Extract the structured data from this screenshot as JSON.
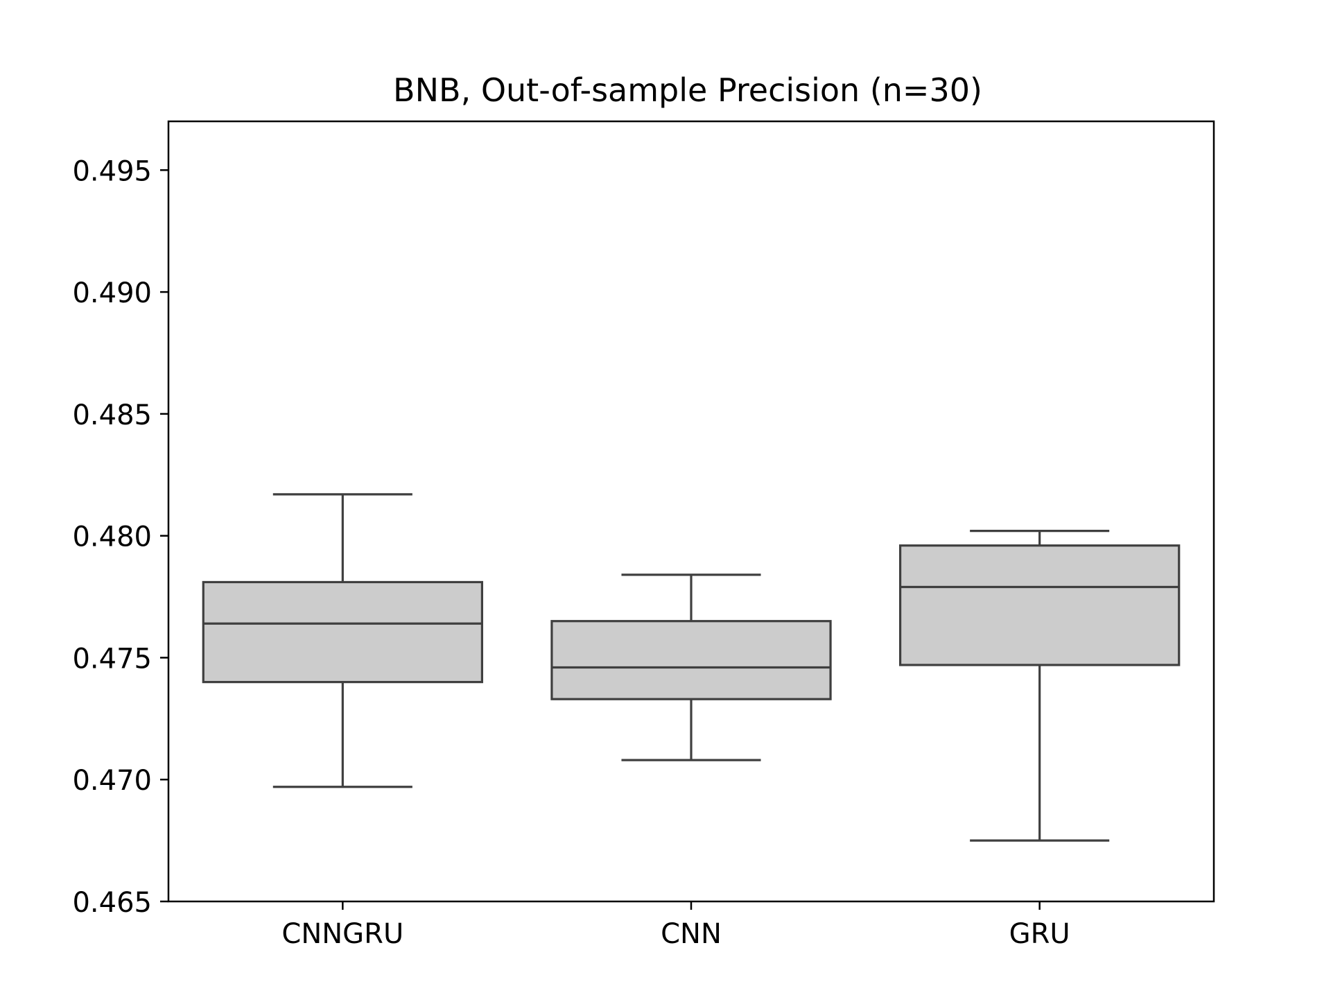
{
  "chart_data": {
    "type": "box",
    "title": "BNB, Out-of-sample Precision (n=30)",
    "xlabel": "",
    "ylabel": "",
    "categories": [
      "CNNGRU",
      "CNN",
      "GRU"
    ],
    "ylim": [
      0.465,
      0.497
    ],
    "yticks": [
      0.465,
      0.47,
      0.475,
      0.48,
      0.485,
      0.49,
      0.495
    ],
    "ytick_labels": [
      "0.465",
      "0.470",
      "0.475",
      "0.480",
      "0.485",
      "0.490",
      "0.495"
    ],
    "grid": false,
    "box_fill": "#cccccc",
    "line_color": "#3f3f3f",
    "boxes": [
      {
        "name": "CNNGRU",
        "whisker_low": 0.4697,
        "q1": 0.474,
        "median": 0.4764,
        "q3": 0.4781,
        "whisker_high": 0.4817
      },
      {
        "name": "CNN",
        "whisker_low": 0.4708,
        "q1": 0.4733,
        "median": 0.4746,
        "q3": 0.4765,
        "whisker_high": 0.4784
      },
      {
        "name": "GRU",
        "whisker_low": 0.4675,
        "q1": 0.4747,
        "median": 0.4779,
        "q3": 0.4796,
        "whisker_high": 0.4802
      }
    ]
  }
}
